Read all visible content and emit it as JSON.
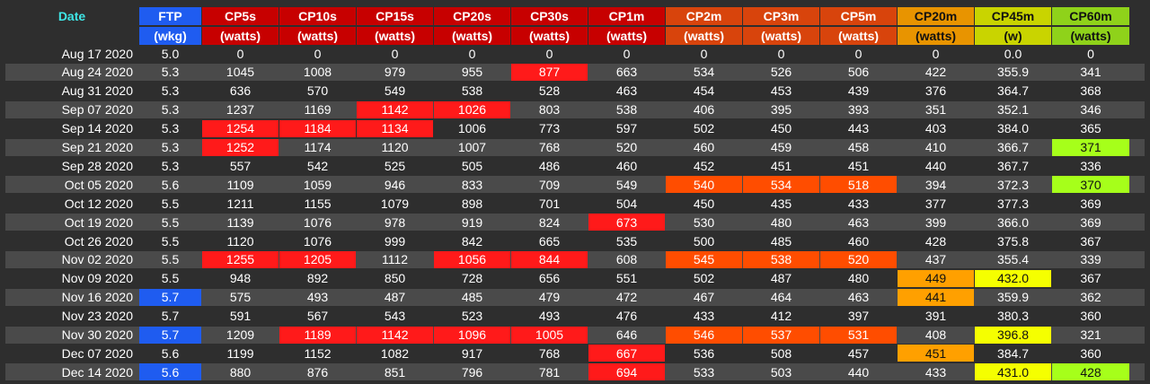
{
  "columns": [
    {
      "key": "date",
      "title": "Date",
      "unit": "",
      "bg": ""
    },
    {
      "key": "ftp",
      "title": "FTP",
      "unit": "(wkg)",
      "bg": "#1f5cf0"
    },
    {
      "key": "cp5s",
      "title": "CP5s",
      "unit": "(watts)",
      "bg": "#c70000"
    },
    {
      "key": "cp10s",
      "title": "CP10s",
      "unit": "(watts)",
      "bg": "#c70000"
    },
    {
      "key": "cp15s",
      "title": "CP15s",
      "unit": "(watts)",
      "bg": "#c70000"
    },
    {
      "key": "cp20s",
      "title": "CP20s",
      "unit": "(watts)",
      "bg": "#c70000"
    },
    {
      "key": "cp30s",
      "title": "CP30s",
      "unit": "(watts)",
      "bg": "#c70000"
    },
    {
      "key": "cp1m",
      "title": "CP1m",
      "unit": "(watts)",
      "bg": "#c70000"
    },
    {
      "key": "cp2m",
      "title": "CP2m",
      "unit": "(watts)",
      "bg": "#d8440c"
    },
    {
      "key": "cp3m",
      "title": "CP3m",
      "unit": "(watts)",
      "bg": "#d8440c"
    },
    {
      "key": "cp5m",
      "title": "CP5m",
      "unit": "(watts)",
      "bg": "#d8440c"
    },
    {
      "key": "cp20m",
      "title": "CP20m",
      "unit": "(watts)",
      "bg": "#e89400"
    },
    {
      "key": "cp45m",
      "title": "CP45m",
      "unit": "(w)",
      "bg": "#c9d400"
    },
    {
      "key": "cp60m",
      "title": "CP60m",
      "unit": "(watts)",
      "bg": "#8fd21a"
    }
  ],
  "highlight_colors": {
    "ftp": "#1f5cf0",
    "cp5s": "#ff1a1a",
    "cp10s": "#ff1a1a",
    "cp15s": "#ff1a1a",
    "cp20s": "#ff1a1a",
    "cp30s": "#ff1a1a",
    "cp1m": "#ff1a1a",
    "cp2m": "#ff4d00",
    "cp3m": "#ff4d00",
    "cp5m": "#ff4d00",
    "cp20m": "#ffa000",
    "cp45m": "#f5ff00",
    "cp60m": "#a6ff1a"
  },
  "dark_text_columns": [
    "cp20m",
    "cp45m",
    "cp60m"
  ],
  "rows": [
    {
      "date": "Aug 17 2020",
      "cells": [
        "5.0",
        "0",
        "0",
        "0",
        "0",
        "0",
        "0",
        "0",
        "0",
        "0",
        "0",
        "0.0",
        "0"
      ],
      "hl": []
    },
    {
      "date": "Aug 24 2020",
      "cells": [
        "5.3",
        "1045",
        "1008",
        "979",
        "955",
        "877",
        "663",
        "534",
        "526",
        "506",
        "422",
        "355.9",
        "341"
      ],
      "hl": [
        "cp30s"
      ]
    },
    {
      "date": "Aug 31 2020",
      "cells": [
        "5.3",
        "636",
        "570",
        "549",
        "538",
        "528",
        "463",
        "454",
        "453",
        "439",
        "376",
        "364.7",
        "368"
      ],
      "hl": []
    },
    {
      "date": "Sep 07 2020",
      "cells": [
        "5.3",
        "1237",
        "1169",
        "1142",
        "1026",
        "803",
        "538",
        "406",
        "395",
        "393",
        "351",
        "352.1",
        "346"
      ],
      "hl": [
        "cp15s",
        "cp20s"
      ]
    },
    {
      "date": "Sep 14 2020",
      "cells": [
        "5.3",
        "1254",
        "1184",
        "1134",
        "1006",
        "773",
        "597",
        "502",
        "450",
        "443",
        "403",
        "384.0",
        "365"
      ],
      "hl": [
        "cp5s",
        "cp10s",
        "cp15s"
      ]
    },
    {
      "date": "Sep 21 2020",
      "cells": [
        "5.3",
        "1252",
        "1174",
        "1120",
        "1007",
        "768",
        "520",
        "460",
        "459",
        "458",
        "410",
        "366.7",
        "371"
      ],
      "hl": [
        "cp5s",
        "cp60m"
      ]
    },
    {
      "date": "Sep 28 2020",
      "cells": [
        "5.3",
        "557",
        "542",
        "525",
        "505",
        "486",
        "460",
        "452",
        "451",
        "451",
        "440",
        "367.7",
        "336"
      ],
      "hl": []
    },
    {
      "date": "Oct 05 2020",
      "cells": [
        "5.6",
        "1109",
        "1059",
        "946",
        "833",
        "709",
        "549",
        "540",
        "534",
        "518",
        "394",
        "372.3",
        "370"
      ],
      "hl": [
        "cp2m",
        "cp3m",
        "cp5m",
        "cp60m"
      ]
    },
    {
      "date": "Oct 12 2020",
      "cells": [
        "5.5",
        "1211",
        "1155",
        "1079",
        "898",
        "701",
        "504",
        "450",
        "435",
        "433",
        "377",
        "377.3",
        "369"
      ],
      "hl": []
    },
    {
      "date": "Oct 19 2020",
      "cells": [
        "5.5",
        "1139",
        "1076",
        "978",
        "919",
        "824",
        "673",
        "530",
        "480",
        "463",
        "399",
        "366.0",
        "369"
      ],
      "hl": [
        "cp1m"
      ]
    },
    {
      "date": "Oct 26 2020",
      "cells": [
        "5.5",
        "1120",
        "1076",
        "999",
        "842",
        "665",
        "535",
        "500",
        "485",
        "460",
        "428",
        "375.8",
        "367"
      ],
      "hl": []
    },
    {
      "date": "Nov 02 2020",
      "cells": [
        "5.5",
        "1255",
        "1205",
        "1112",
        "1056",
        "844",
        "608",
        "545",
        "538",
        "520",
        "437",
        "355.4",
        "339"
      ],
      "hl": [
        "cp5s",
        "cp10s",
        "cp20s",
        "cp30s",
        "cp2m",
        "cp3m",
        "cp5m"
      ]
    },
    {
      "date": "Nov 09 2020",
      "cells": [
        "5.5",
        "948",
        "892",
        "850",
        "728",
        "656",
        "551",
        "502",
        "487",
        "480",
        "449",
        "432.0",
        "367"
      ],
      "hl": [
        "cp20m",
        "cp45m"
      ]
    },
    {
      "date": "Nov 16 2020",
      "cells": [
        "5.7",
        "575",
        "493",
        "487",
        "485",
        "479",
        "472",
        "467",
        "464",
        "463",
        "441",
        "359.9",
        "362"
      ],
      "hl": [
        "ftp",
        "cp20m"
      ]
    },
    {
      "date": "Nov 23 2020",
      "cells": [
        "5.7",
        "591",
        "567",
        "543",
        "523",
        "493",
        "476",
        "433",
        "412",
        "397",
        "391",
        "380.3",
        "360"
      ],
      "hl": []
    },
    {
      "date": "Nov 30 2020",
      "cells": [
        "5.7",
        "1209",
        "1189",
        "1142",
        "1096",
        "1005",
        "646",
        "546",
        "537",
        "531",
        "408",
        "396.8",
        "321"
      ],
      "hl": [
        "ftp",
        "cp10s",
        "cp15s",
        "cp20s",
        "cp30s",
        "cp2m",
        "cp3m",
        "cp5m",
        "cp45m"
      ]
    },
    {
      "date": "Dec 07 2020",
      "cells": [
        "5.6",
        "1199",
        "1152",
        "1082",
        "917",
        "768",
        "667",
        "536",
        "508",
        "457",
        "451",
        "384.7",
        "360"
      ],
      "hl": [
        "cp1m",
        "cp20m"
      ]
    },
    {
      "date": "Dec 14 2020",
      "cells": [
        "5.6",
        "880",
        "876",
        "851",
        "796",
        "781",
        "694",
        "533",
        "503",
        "440",
        "433",
        "431.0",
        "428"
      ],
      "hl": [
        "ftp",
        "cp1m",
        "cp45m",
        "cp60m"
      ]
    }
  ]
}
